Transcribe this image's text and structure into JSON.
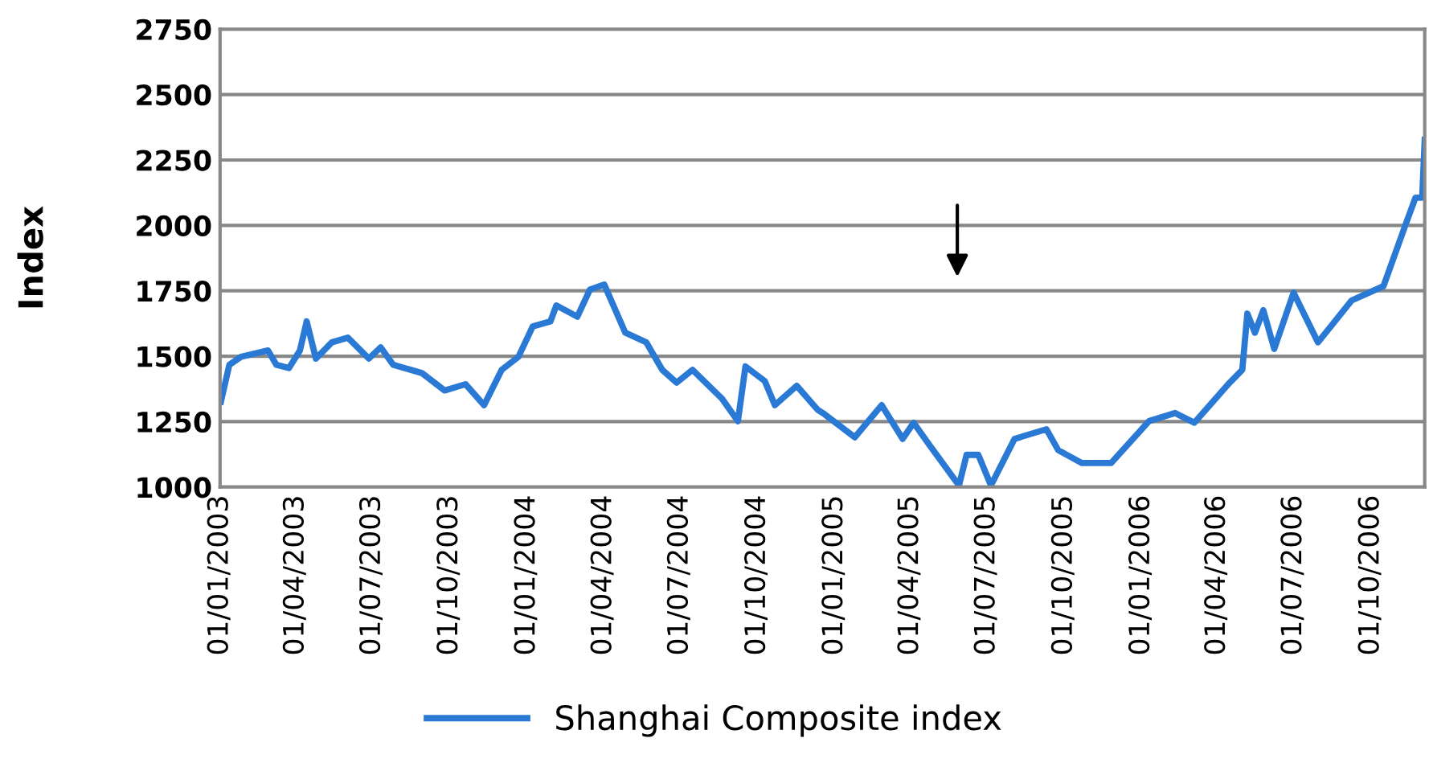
{
  "chart_data": {
    "type": "line",
    "ylabel": "Index",
    "x": [
      "2003-01-02",
      "2003-01-12",
      "2003-01-26",
      "2003-02-27",
      "2003-03-09",
      "2003-03-24",
      "2003-04-06",
      "2003-04-14",
      "2003-04-25",
      "2003-05-14",
      "2003-06-02",
      "2003-06-27",
      "2003-07-11",
      "2003-07-26",
      "2003-08-29",
      "2003-09-25",
      "2003-10-20",
      "2003-11-11",
      "2003-12-02",
      "2003-12-22",
      "2004-01-08",
      "2004-01-29",
      "2004-02-05",
      "2004-03-01",
      "2004-03-16",
      "2004-04-02",
      "2004-04-27",
      "2004-05-22",
      "2004-06-10",
      "2004-06-27",
      "2004-07-16",
      "2004-08-20",
      "2004-09-08",
      "2004-09-17",
      "2004-10-10",
      "2004-10-22",
      "2004-11-17",
      "2004-12-12",
      "2004-12-18",
      "2005-01-25",
      "2005-02-26",
      "2005-03-23",
      "2005-04-05",
      "2005-04-24",
      "2005-05-29",
      "2005-06-07",
      "2005-06-21",
      "2005-07-06",
      "2005-08-03",
      "2005-09-10",
      "2005-09-24",
      "2005-10-22",
      "2005-11-26",
      "2006-01-10",
      "2006-02-10",
      "2006-03-05",
      "2006-04-16",
      "2006-05-01",
      "2006-05-07",
      "2006-05-16",
      "2006-05-26",
      "2006-06-08",
      "2006-07-01",
      "2006-07-30",
      "2006-09-08",
      "2006-10-16",
      "2006-11-11",
      "2006-11-23",
      "2006-12-01",
      "2006-12-04"
    ],
    "series": [
      {
        "name": "Shanghai Composite index",
        "color": "#2a7ad5",
        "values": [
          1326,
          1467,
          1498,
          1522,
          1467,
          1455,
          1522,
          1633,
          1491,
          1553,
          1571,
          1491,
          1534,
          1467,
          1436,
          1369,
          1393,
          1313,
          1448,
          1498,
          1614,
          1633,
          1694,
          1651,
          1755,
          1774,
          1590,
          1553,
          1448,
          1399,
          1448,
          1338,
          1252,
          1461,
          1405,
          1313,
          1387,
          1295,
          1283,
          1190,
          1313,
          1184,
          1246,
          1160,
          1006,
          1123,
          1123,
          1006,
          1184,
          1221,
          1141,
          1092,
          1092,
          1252,
          1283,
          1246,
          1399,
          1448,
          1663,
          1590,
          1676,
          1528,
          1743,
          1553,
          1713,
          1768,
          2001,
          2106,
          2106,
          2327
        ]
      }
    ],
    "xlim": [
      "2003-01-01",
      "2006-12-04"
    ],
    "xticks": [
      {
        "value": "2003-01-01",
        "label": "01/01/2003"
      },
      {
        "value": "2003-04-01",
        "label": "01/04/2003"
      },
      {
        "value": "2003-07-01",
        "label": "01/07/2003"
      },
      {
        "value": "2003-10-01",
        "label": "01/10/2003"
      },
      {
        "value": "2004-01-01",
        "label": "01/01/2004"
      },
      {
        "value": "2004-04-01",
        "label": "01/04/2004"
      },
      {
        "value": "2004-07-01",
        "label": "01/07/2004"
      },
      {
        "value": "2004-10-01",
        "label": "01/10/2004"
      },
      {
        "value": "2005-01-01",
        "label": "01/01/2005"
      },
      {
        "value": "2005-04-01",
        "label": "01/04/2005"
      },
      {
        "value": "2005-07-01",
        "label": "01/07/2005"
      },
      {
        "value": "2005-10-01",
        "label": "01/10/2005"
      },
      {
        "value": "2006-01-01",
        "label": "01/01/2006"
      },
      {
        "value": "2006-04-01",
        "label": "01/04/2006"
      },
      {
        "value": "2006-07-01",
        "label": "01/07/2006"
      },
      {
        "value": "2006-10-01",
        "label": "01/10/2006"
      }
    ],
    "ylim": [
      1000,
      2750
    ],
    "yticks": [
      1000,
      1250,
      1500,
      1750,
      2000,
      2250,
      2500,
      2750
    ],
    "grid": "y",
    "legend": "bottom",
    "marker": "none",
    "line_style": "solid"
  }
}
